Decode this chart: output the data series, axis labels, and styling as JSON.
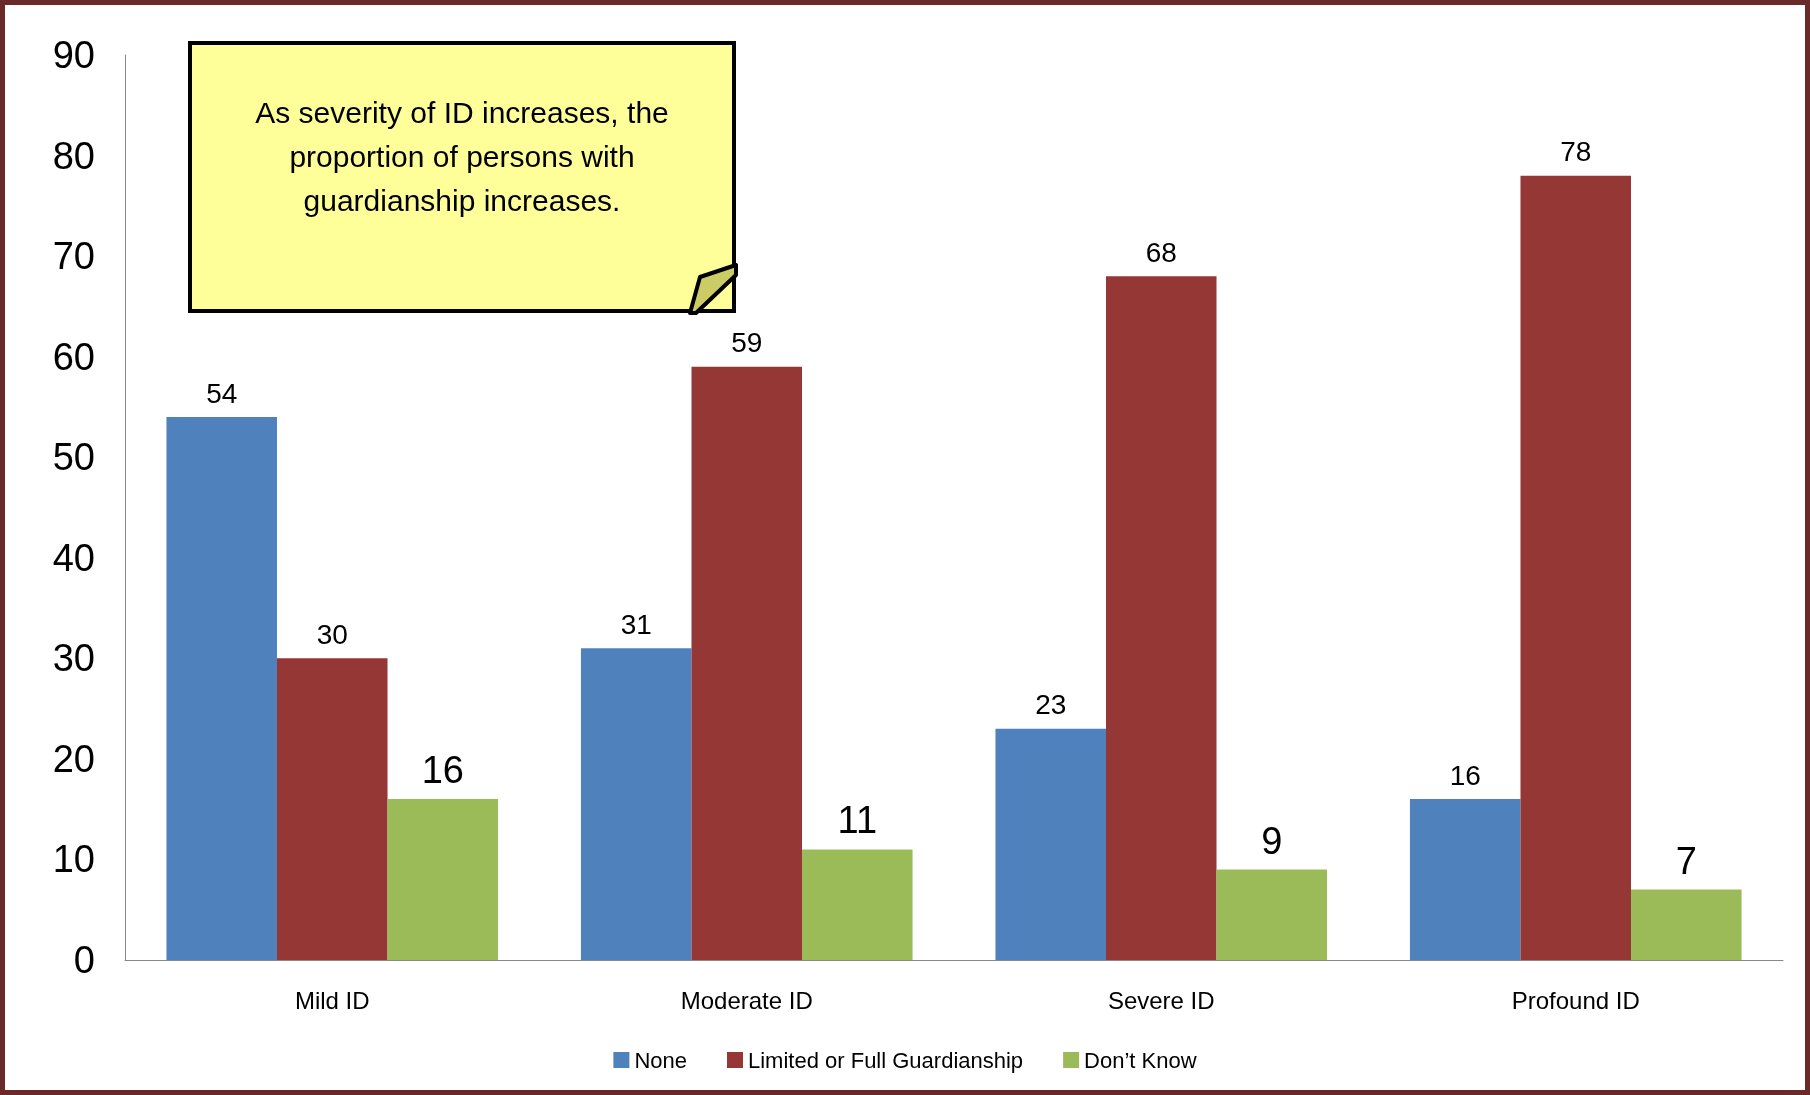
{
  "chart_data": {
    "type": "bar",
    "categories": [
      "Mild ID",
      "Moderate ID",
      "Severe ID",
      "Profound ID"
    ],
    "series": [
      {
        "name": "None",
        "color": "#4f81bd",
        "values": [
          54,
          31,
          23,
          16
        ]
      },
      {
        "name": "Limited or Full Guardianship",
        "color": "#953735",
        "values": [
          30,
          59,
          68,
          78
        ]
      },
      {
        "name": "Don’t Know",
        "color": "#9bbb59",
        "values": [
          16,
          11,
          9,
          7
        ]
      }
    ],
    "ylim": [
      0,
      90
    ],
    "yticks": [
      0,
      10,
      20,
      30,
      40,
      50,
      60,
      70,
      80,
      90
    ],
    "grid": false,
    "legend": "bottom",
    "data_labels": true,
    "annotations": [
      "As severity of ID increases, the proportion of persons with guardianship increases."
    ]
  }
}
